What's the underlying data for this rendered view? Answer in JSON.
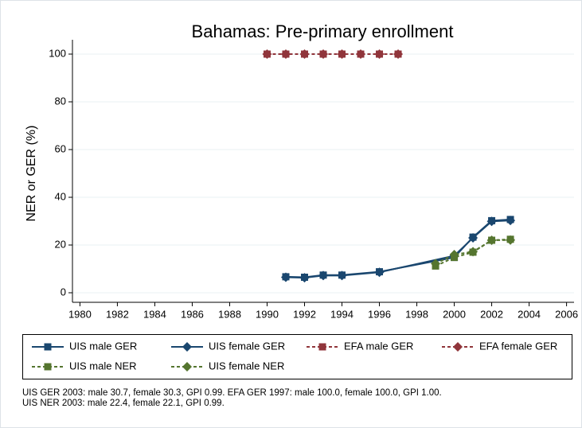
{
  "chart_data": {
    "type": "line",
    "title": "Bahamas: Pre-primary enrollment",
    "y_label": "NER or GER (%)",
    "xlim": [
      1979.6,
      2006.4
    ],
    "xticks": [
      1980,
      1982,
      1984,
      1986,
      1988,
      1990,
      1992,
      1994,
      1996,
      1998,
      2000,
      2002,
      2004,
      2006
    ],
    "ylim": [
      -4,
      106
    ],
    "yticks": [
      0,
      20,
      40,
      60,
      80,
      100
    ],
    "grid": true,
    "series": [
      {
        "name": "UIS male GER",
        "color": "#1a476f",
        "marker": "square",
        "dash": false,
        "x": [
          1991,
          1992,
          1993,
          1994,
          1996,
          2000,
          2001,
          2002,
          2003
        ],
        "values": [
          6.7,
          6.5,
          7.4,
          7.4,
          8.8,
          14.8,
          23.3,
          30.2,
          30.7
        ]
      },
      {
        "name": "UIS female GER",
        "color": "#1a476f",
        "marker": "diamond",
        "dash": false,
        "x": [
          1991,
          1992,
          1993,
          1994,
          1996,
          2000,
          2001,
          2002,
          2003
        ],
        "values": [
          6.5,
          6.3,
          7.2,
          7.2,
          8.6,
          15.5,
          23.0,
          29.9,
          30.3
        ]
      },
      {
        "name": "EFA male GER",
        "color": "#90353b",
        "marker": "square",
        "dash": true,
        "x": [
          1990,
          1991,
          1992,
          1993,
          1994,
          1995,
          1996,
          1997
        ],
        "values": [
          100,
          100,
          100,
          100,
          100,
          100,
          100,
          100
        ]
      },
      {
        "name": "EFA female GER",
        "color": "#90353b",
        "marker": "diamond",
        "dash": true,
        "x": [
          1990,
          1991,
          1992,
          1993,
          1994,
          1995,
          1996,
          1997
        ],
        "values": [
          100,
          100,
          100,
          100,
          100,
          100,
          100,
          100
        ]
      },
      {
        "name": "UIS male NER",
        "color": "#55752f",
        "marker": "square",
        "dash": true,
        "x": [
          1999,
          2000,
          2001,
          2002,
          2003
        ],
        "values": [
          11.2,
          14.8,
          17.0,
          22.0,
          22.4
        ]
      },
      {
        "name": "UIS female NER",
        "color": "#55752f",
        "marker": "diamond",
        "dash": true,
        "x": [
          1999,
          2000,
          2001,
          2002,
          2003
        ],
        "values": [
          12.2,
          16.0,
          17.2,
          22.0,
          22.1
        ]
      }
    ],
    "notes": [
      "UIS GER 2003: male 30.7, female 30.3, GPI 0.99. EFA GER 1997: male 100.0, female 100.0, GPI 1.00.",
      "UIS NER 2003: male 22.4, female 22.1, GPI 0.99."
    ]
  }
}
